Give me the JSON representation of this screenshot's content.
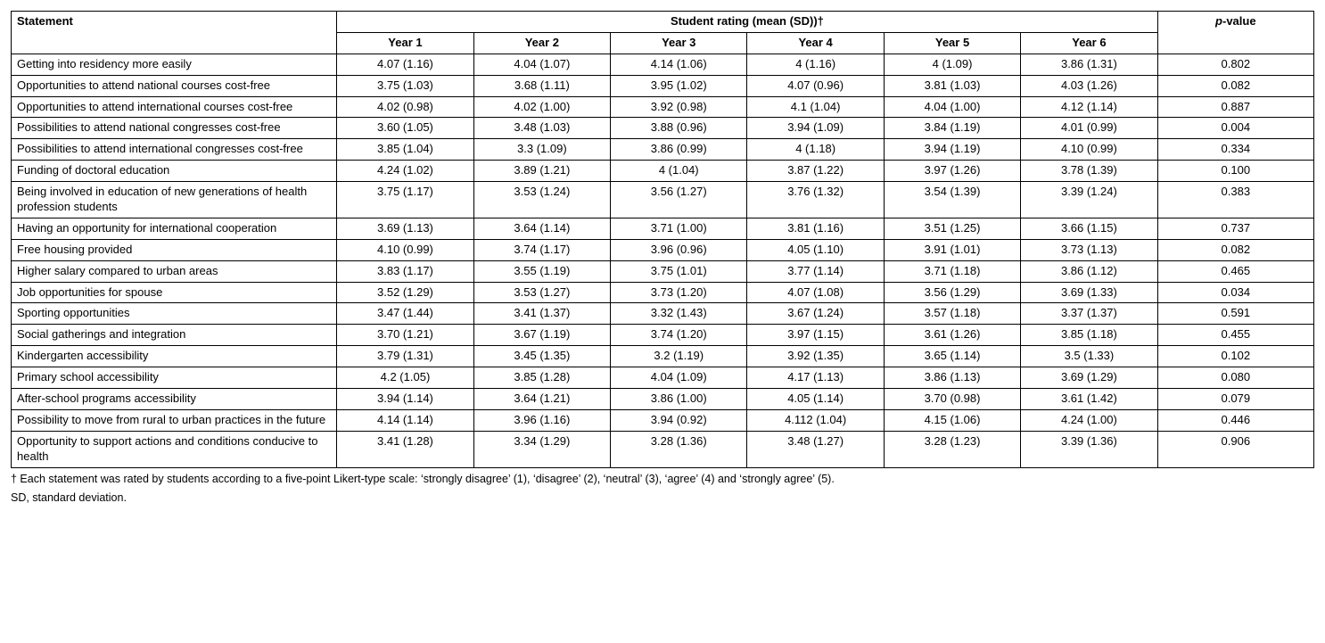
{
  "table": {
    "headers": {
      "statement": "Statement",
      "rating_group": "Student rating (mean (SD))†",
      "years": [
        "Year 1",
        "Year 2",
        "Year 3",
        "Year 4",
        "Year 5",
        "Year 6"
      ],
      "pvalue_prefix": "p",
      "pvalue_suffix": "-value"
    },
    "rows": [
      {
        "statement": "Getting into residency more easily",
        "values": [
          "4.07 (1.16)",
          "4.04 (1.07)",
          "4.14 (1.06)",
          "4 (1.16)",
          "4 (1.09)",
          "3.86 (1.31)"
        ],
        "p": "0.802"
      },
      {
        "statement": "Opportunities to attend national courses cost-free",
        "values": [
          "3.75 (1.03)",
          "3.68 (1.11)",
          "3.95 (1.02)",
          "4.07 (0.96)",
          "3.81 (1.03)",
          "4.03 (1.26)"
        ],
        "p": "0.082"
      },
      {
        "statement": "Opportunities to attend international courses cost-free",
        "values": [
          "4.02 (0.98)",
          "4.02 (1.00)",
          "3.92 (0.98)",
          "4.1 (1.04)",
          "4.04 (1.00)",
          "4.12 (1.14)"
        ],
        "p": "0.887"
      },
      {
        "statement": "Possibilities to attend national congresses cost-free",
        "values": [
          "3.60 (1.05)",
          "3.48 (1.03)",
          "3.88 (0.96)",
          "3.94 (1.09)",
          "3.84 (1.19)",
          "4.01 (0.99)"
        ],
        "p": "0.004"
      },
      {
        "statement": "Possibilities to attend international congresses cost-free",
        "values": [
          "3.85 (1.04)",
          "3.3 (1.09)",
          "3.86 (0.99)",
          "4 (1.18)",
          "3.94 (1.19)",
          "4.10 (0.99)"
        ],
        "p": "0.334"
      },
      {
        "statement": "Funding of doctoral education",
        "values": [
          "4.24 (1.02)",
          "3.89 (1.21)",
          "4 (1.04)",
          "3.87 (1.22)",
          "3.97 (1.26)",
          "3.78 (1.39)"
        ],
        "p": "0.100"
      },
      {
        "statement": "Being involved in education of new generations of health profession students",
        "values": [
          "3.75 (1.17)",
          "3.53 (1.24)",
          "3.56 (1.27)",
          "3.76 (1.32)",
          "3.54 (1.39)",
          "3.39 (1.24)"
        ],
        "p": "0.383"
      },
      {
        "statement": "Having an opportunity for international cooperation",
        "values": [
          "3.69 (1.13)",
          "3.64 (1.14)",
          "3.71 (1.00)",
          "3.81 (1.16)",
          "3.51 (1.25)",
          "3.66 (1.15)"
        ],
        "p": "0.737"
      },
      {
        "statement": "Free housing provided",
        "values": [
          "4.10 (0.99)",
          "3.74 (1.17)",
          "3.96 (0.96)",
          "4.05 (1.10)",
          "3.91 (1.01)",
          "3.73 (1.13)"
        ],
        "p": "0.082"
      },
      {
        "statement": "Higher salary compared to urban areas",
        "values": [
          "3.83 (1.17)",
          "3.55 (1.19)",
          "3.75 (1.01)",
          "3.77 (1.14)",
          "3.71 (1.18)",
          "3.86 (1.12)"
        ],
        "p": "0.465"
      },
      {
        "statement": "Job opportunities for spouse",
        "values": [
          "3.52 (1.29)",
          "3.53 (1.27)",
          "3.73 (1.20)",
          "4.07 (1.08)",
          "3.56 (1.29)",
          "3.69 (1.33)"
        ],
        "p": "0.034"
      },
      {
        "statement": "Sporting opportunities",
        "values": [
          "3.47 (1.44)",
          "3.41 (1.37)",
          "3.32 (1.43)",
          "3.67 (1.24)",
          "3.57 (1.18)",
          "3.37 (1.37)"
        ],
        "p": "0.591"
      },
      {
        "statement": "Social gatherings and integration",
        "values": [
          "3.70 (1.21)",
          "3.67 (1.19)",
          "3.74 (1.20)",
          "3.97 (1.15)",
          "3.61 (1.26)",
          "3.85 (1.18)"
        ],
        "p": "0.455"
      },
      {
        "statement": "Kindergarten accessibility",
        "values": [
          "3.79 (1.31)",
          "3.45 (1.35)",
          "3.2 (1.19)",
          "3.92 (1.35)",
          "3.65 (1.14)",
          "3.5 (1.33)"
        ],
        "p": "0.102"
      },
      {
        "statement": "Primary school accessibility",
        "values": [
          "4.2 (1.05)",
          "3.85 (1.28)",
          "4.04 (1.09)",
          "4.17 (1.13)",
          "3.86 (1.13)",
          "3.69 (1.29)"
        ],
        "p": "0.080"
      },
      {
        "statement": "After-school programs accessibility",
        "values": [
          "3.94 (1.14)",
          "3.64 (1.21)",
          "3.86 (1.00)",
          "4.05 (1.14)",
          "3.70 (0.98)",
          "3.61 (1.42)"
        ],
        "p": "0.079"
      },
      {
        "statement": "Possibility to move from rural to urban practices in the future",
        "values": [
          "4.14 (1.14)",
          "3.96 (1.16)",
          "3.94 (0.92)",
          "4.112 (1.04)",
          "4.15 (1.06)",
          "4.24 (1.00)"
        ],
        "p": "0.446"
      },
      {
        "statement": "Opportunity to support actions and conditions conducive to health",
        "values": [
          "3.41 (1.28)",
          "3.34 (1.29)",
          "3.28 (1.36)",
          "3.48 (1.27)",
          "3.28 (1.23)",
          "3.39 (1.36)"
        ],
        "p": "0.906"
      }
    ]
  },
  "footnotes": {
    "line1": "† Each statement was rated by students according to a five-point Likert-type scale: ‘strongly disagree’ (1), ‘disagree’ (2), ‘neutral’ (3), ‘agree’ (4) and ‘strongly agree’ (5).",
    "line2": "SD, standard deviation."
  }
}
